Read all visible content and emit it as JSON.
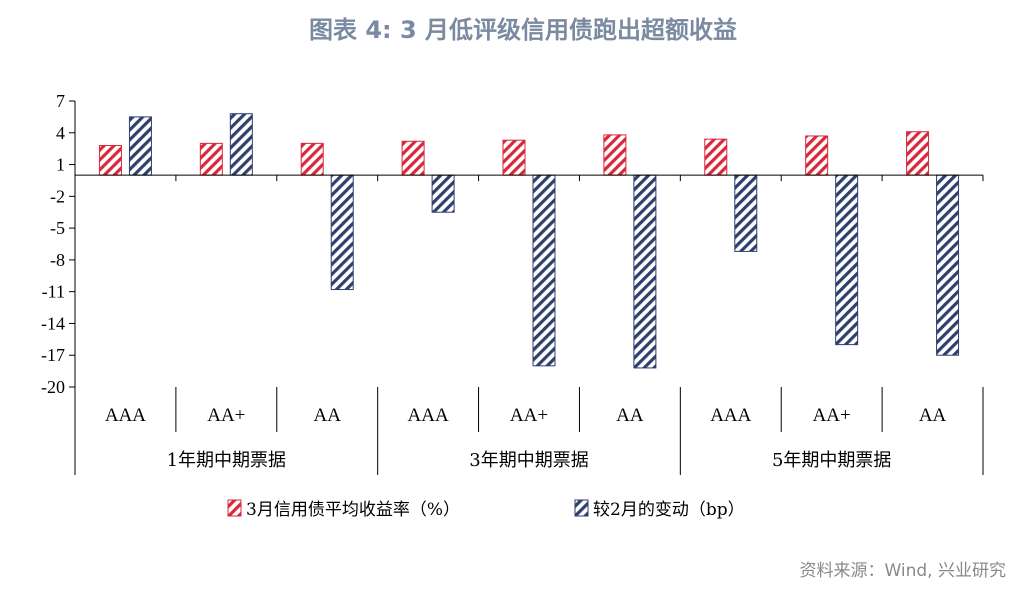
{
  "title": "图表 4:  3 月低评级信用债跑出超额收益",
  "source": "资料来源：Wind, 兴业研究",
  "chart_data": {
    "type": "bar",
    "categories": [
      "AAA",
      "AA+",
      "AA",
      "AAA",
      "AA+",
      "AA",
      "AAA",
      "AA+",
      "AA"
    ],
    "groups": [
      {
        "label": "1年期中期票据",
        "categories": [
          "AAA",
          "AA+",
          "AA"
        ]
      },
      {
        "label": "3年期中期票据",
        "categories": [
          "AAA",
          "AA+",
          "AA"
        ]
      },
      {
        "label": "5年期中期票据",
        "categories": [
          "AAA",
          "AA+",
          "AA"
        ]
      }
    ],
    "series": [
      {
        "name": "3月信用债平均收益率（%）",
        "color": "#d9283c",
        "values": [
          2.8,
          3.0,
          3.0,
          3.2,
          3.3,
          3.8,
          3.4,
          3.7,
          4.1
        ]
      },
      {
        "name": "较2月的变动（bp）",
        "color": "#2f3f6e",
        "values": [
          5.5,
          5.8,
          -10.8,
          -3.5,
          -18.0,
          -18.2,
          -7.2,
          -16.0,
          -17.0
        ]
      }
    ],
    "yticks": [
      7,
      4,
      1,
      -2,
      -5,
      -8,
      -11,
      -14,
      -17,
      -20
    ],
    "ylim": [
      -20,
      7
    ],
    "legend_position": "bottom"
  }
}
